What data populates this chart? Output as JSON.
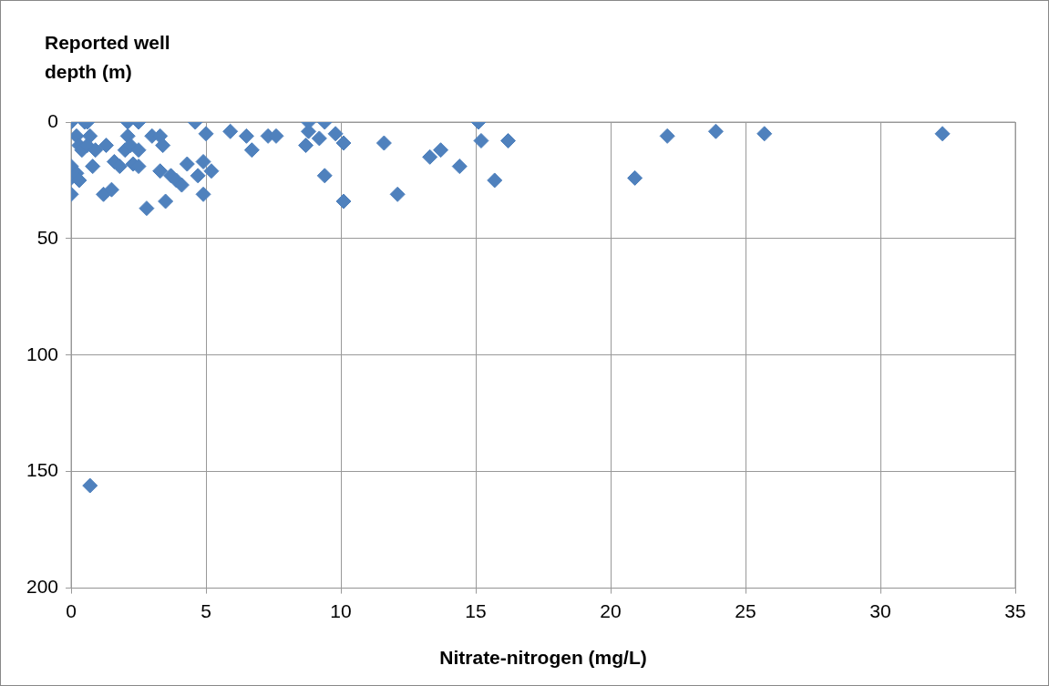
{
  "chart_data": {
    "type": "scatter",
    "xlabel": "Nitrate-nitrogen (mg/L)",
    "ylabel": "Reported well depth (m)",
    "x": [
      0,
      0,
      0,
      0,
      0.2,
      0.3,
      0.2,
      0.3,
      0.4,
      0.5,
      0.6,
      0.7,
      0.6,
      0.9,
      0.8,
      1.2,
      1.3,
      1.5,
      1.6,
      1.8,
      2.0,
      2.1,
      2.1,
      2.2,
      2.3,
      2.5,
      2.5,
      2.5,
      2.8,
      3.0,
      3.3,
      3.4,
      3.3,
      3.5,
      3.7,
      3.9,
      4.1,
      4.3,
      4.6,
      4.7,
      4.9,
      4.9,
      5.0,
      5.2,
      5.9,
      6.5,
      6.7,
      7.3,
      7.6,
      8.8,
      8.8,
      8.7,
      9.2,
      9.4,
      9.4,
      9.8,
      10.1,
      10.1,
      11.6,
      12.1,
      13.3,
      13.7,
      14.4,
      15.1,
      15.2,
      15.7,
      16.2,
      20.9,
      22.1,
      23.9,
      25.7,
      32.3,
      0.7
    ],
    "series": [
      {
        "color": "#4f81bd",
        "values": [
          0,
          19,
          31,
          24,
          22,
          25,
          6,
          10,
          12,
          0,
          0,
          6,
          10,
          12,
          19,
          31,
          10,
          29,
          17,
          19,
          12,
          0,
          6,
          10,
          18,
          0,
          12,
          19,
          37,
          6,
          6,
          10,
          21,
          34,
          23,
          25,
          27,
          18,
          0,
          23,
          17,
          31,
          5,
          21,
          4,
          6,
          12,
          6,
          6,
          4,
          0,
          10,
          7,
          0,
          23,
          5,
          9,
          34,
          9,
          31,
          15,
          12,
          19,
          0,
          8,
          25,
          8,
          24,
          6,
          4,
          5,
          5,
          156
        ]
      }
    ],
    "xlim": [
      0,
      35
    ],
    "xticks": [
      0,
      5,
      10,
      15,
      20,
      25,
      30,
      35
    ],
    "ylim": [
      200,
      0
    ],
    "yticks": [
      0,
      50,
      100,
      150,
      200
    ],
    "grid": true,
    "marker": "diamond"
  }
}
